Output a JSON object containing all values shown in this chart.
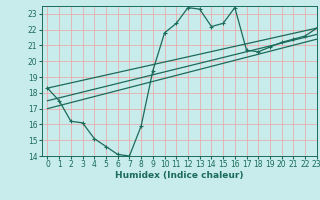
{
  "xlabel": "Humidex (Indice chaleur)",
  "bg_color": "#c8ecec",
  "grid_color": "#f0a0a0",
  "line_color": "#1a6b5a",
  "xlim": [
    -0.5,
    23
  ],
  "ylim": [
    14,
    23.5
  ],
  "xticks": [
    0,
    1,
    2,
    3,
    4,
    5,
    6,
    7,
    8,
    9,
    10,
    11,
    12,
    13,
    14,
    15,
    16,
    17,
    18,
    19,
    20,
    21,
    22,
    23
  ],
  "yticks": [
    14,
    15,
    16,
    17,
    18,
    19,
    20,
    21,
    22,
    23
  ],
  "line1_x": [
    0,
    1,
    2,
    3,
    4,
    5,
    6,
    7,
    8,
    9,
    10,
    11,
    12,
    13,
    14,
    15,
    16,
    17,
    18,
    19,
    20,
    21,
    22,
    23
  ],
  "line1_y": [
    18.3,
    17.5,
    16.2,
    16.1,
    15.1,
    14.6,
    14.1,
    14.0,
    15.9,
    19.4,
    21.8,
    22.4,
    23.4,
    23.3,
    22.2,
    22.4,
    23.4,
    20.7,
    20.6,
    20.9,
    21.2,
    21.4,
    21.6,
    22.1
  ],
  "line2_x": [
    0,
    23
  ],
  "line2_y": [
    18.3,
    22.1
  ],
  "line3_x": [
    0,
    23
  ],
  "line3_y": [
    17.5,
    21.7
  ],
  "line4_x": [
    0,
    23
  ],
  "line4_y": [
    17.0,
    21.4
  ],
  "marker": "+"
}
